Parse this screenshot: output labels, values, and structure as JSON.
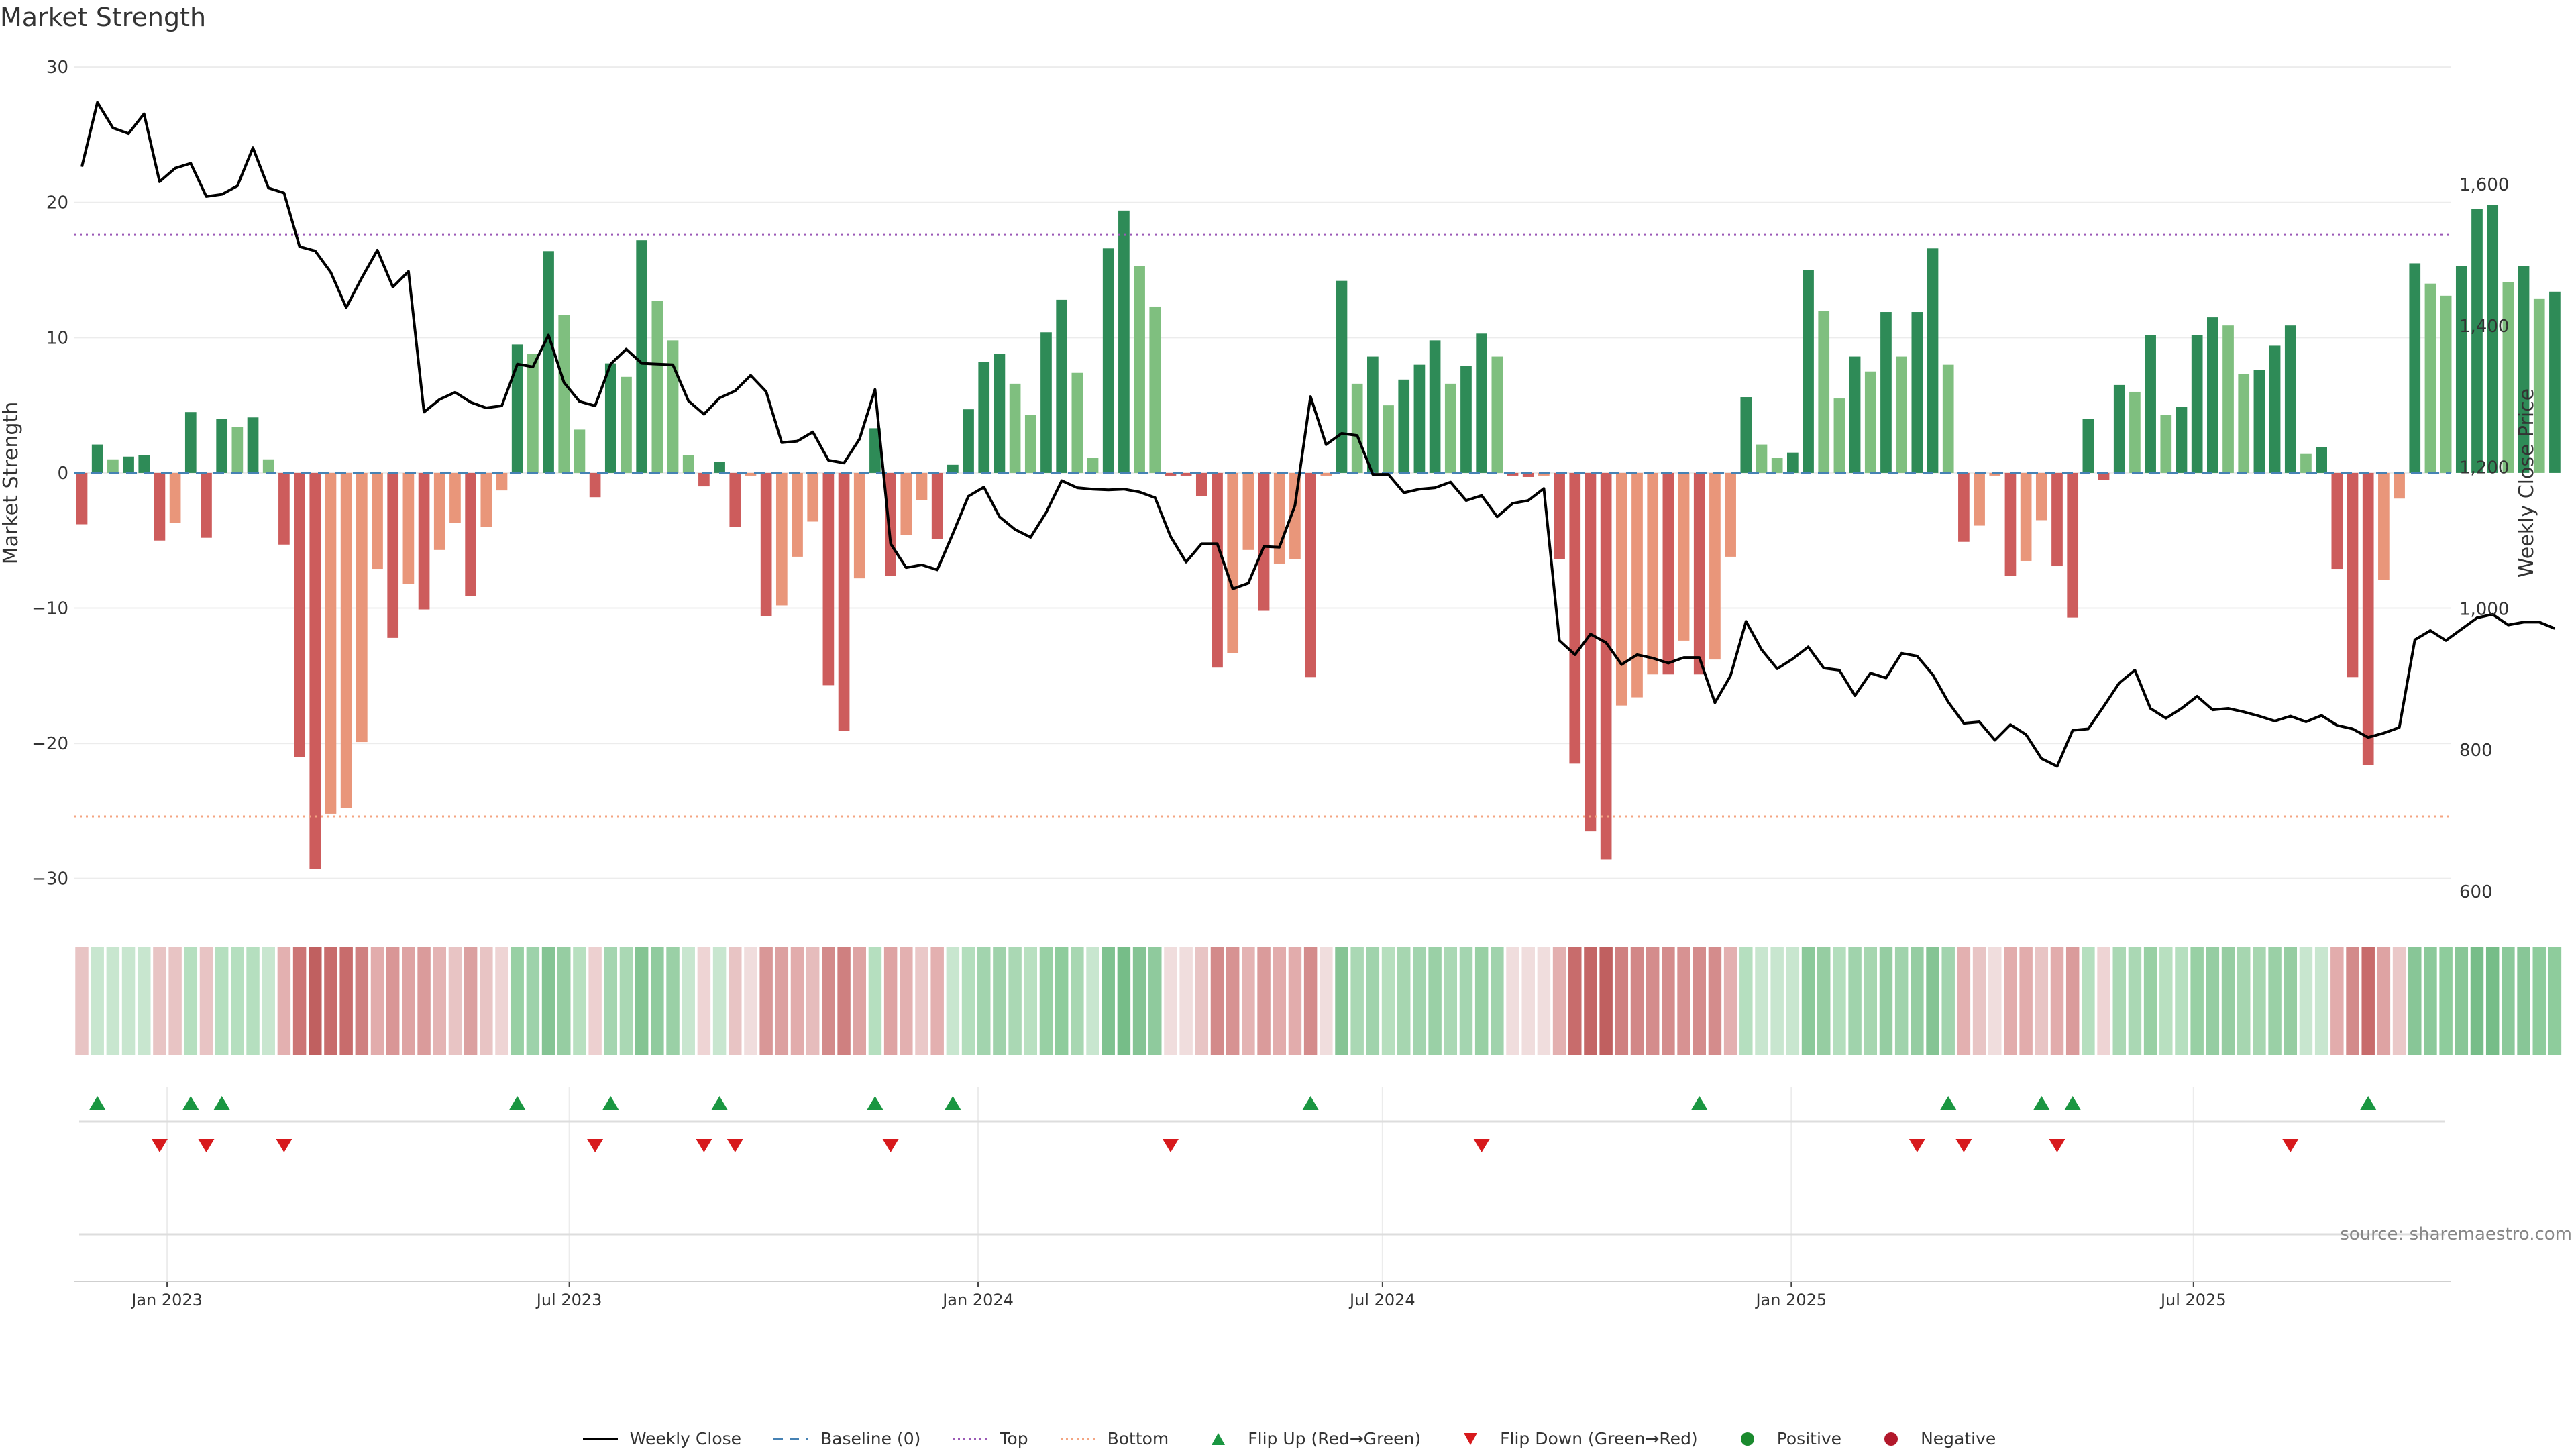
{
  "chart_data": {
    "type": "bar",
    "title": "Market Strength",
    "ylabel_left": "Market Strength",
    "ylabel_right": "Weekly Close Price",
    "ylim_left": [
      -32,
      31
    ],
    "ylim_right": [
      580,
      1785
    ],
    "yticks_left": [
      30,
      20,
      10,
      0,
      -10,
      -20,
      -30
    ],
    "yticks_left_labels": [
      "30",
      "20",
      "10",
      "0",
      "−10",
      "−20",
      "−30"
    ],
    "yticks_right": [
      1600,
      1400,
      1200,
      1000,
      800,
      600
    ],
    "yticks_right_labels": [
      "1,600",
      "1,400",
      "1,200",
      "1,000",
      "800",
      "600"
    ],
    "x_start": "2022-11-20",
    "x_end": "2025-10-25",
    "xtick_labels": [
      {
        "date": "2023-01-01",
        "label": "Jan 2023"
      },
      {
        "date": "2023-07-01",
        "label": "Jul 2023"
      },
      {
        "date": "2024-01-01",
        "label": "Jan 2024"
      },
      {
        "date": "2024-07-01",
        "label": "Jul 2024"
      },
      {
        "date": "2025-01-01",
        "label": "Jan 2025"
      },
      {
        "date": "2025-07-01",
        "label": "Jul 2025"
      }
    ],
    "top_line": 17.6,
    "bottom_line": -25.4,
    "series": [
      {
        "name": "Market Strength",
        "start": "2022-11-20",
        "step_days": 7,
        "values": [
          -3.8,
          2.1,
          1.0,
          1.2,
          1.3,
          -5.0,
          -3.7,
          4.5,
          -4.8,
          4.0,
          3.4,
          4.1,
          1.0,
          -5.3,
          -21.0,
          -29.3,
          -25.2,
          -24.8,
          -19.9,
          -7.1,
          -12.2,
          -8.2,
          -10.1,
          -5.7,
          -3.7,
          -9.1,
          -4.0,
          -1.3,
          9.5,
          8.8,
          16.4,
          11.7,
          3.2,
          -1.8,
          8.1,
          7.1,
          17.2,
          12.7,
          9.8,
          1.3,
          -1.0,
          0.8,
          -4.0,
          -0.2,
          -10.6,
          -9.8,
          -6.2,
          -3.6,
          -15.7,
          -19.1,
          -7.8,
          3.3,
          -7.6,
          -4.6,
          -2.0,
          -4.9,
          0.6,
          4.7,
          8.2,
          8.8,
          6.6,
          4.3,
          10.4,
          12.8,
          7.4,
          1.1,
          16.6,
          19.4,
          15.3,
          12.3,
          -0.2,
          -0.2,
          -1.7,
          -14.4,
          -13.3,
          -5.7,
          -10.2,
          -6.7,
          -6.4,
          -15.1,
          -0.2,
          14.2,
          6.6,
          8.6,
          5.0,
          6.9,
          8.0,
          9.8,
          6.6,
          7.9,
          10.3,
          8.6,
          -0.2,
          -0.3,
          -0.2,
          -6.4,
          -21.5,
          -26.5,
          -28.6,
          -17.2,
          -16.6,
          -14.9,
          -14.9,
          -12.4,
          -14.9,
          -13.8,
          -6.2,
          5.6,
          2.1,
          1.1,
          1.5,
          15.0,
          12.0,
          5.5,
          8.6,
          7.5,
          11.9,
          8.6,
          11.9,
          16.6,
          8.0,
          -5.1,
          -3.9,
          -0.2,
          -7.6,
          -6.5,
          -3.5,
          -6.9,
          -10.7,
          4.0,
          -0.5,
          6.5,
          6.0,
          10.2,
          4.3,
          4.9,
          10.2,
          11.5,
          10.9,
          7.3,
          7.6,
          9.4,
          10.9,
          1.4,
          1.9,
          -7.1,
          -15.1,
          -21.6,
          -7.9,
          -1.9,
          15.5,
          14.0,
          13.1,
          15.3,
          19.5,
          19.8,
          14.1,
          15.3,
          12.9,
          13.4
        ]
      },
      {
        "name": "Weekly Close",
        "start": "2022-11-20",
        "step_days": 7,
        "values": [
          1625,
          1716,
          1680,
          1672,
          1700,
          1604,
          1623,
          1630,
          1583,
          1586,
          1598,
          1652,
          1595,
          1588,
          1512,
          1506,
          1476,
          1426,
          1468,
          1507,
          1455,
          1477,
          1278,
          1296,
          1306,
          1292,
          1284,
          1287,
          1346,
          1342,
          1387,
          1320,
          1293,
          1287,
          1346,
          1367,
          1347,
          1346,
          1345,
          1294,
          1275,
          1298,
          1308,
          1330,
          1307,
          1235,
          1237,
          1250,
          1210,
          1206,
          1240,
          1310,
          1092,
          1058,
          1062,
          1055,
          1106,
          1159,
          1172,
          1130,
          1112,
          1101,
          1136,
          1181,
          1171,
          1169,
          1168,
          1169,
          1165,
          1157,
          1102,
          1066,
          1092,
          1092,
          1028,
          1036,
          1088,
          1087,
          1146,
          1300,
          1232,
          1248,
          1245,
          1190,
          1190,
          1164,
          1169,
          1171,
          1179,
          1153,
          1160,
          1130,
          1149,
          1153,
          1170,
          955,
          935,
          964,
          952,
          921,
          935,
          930,
          923,
          931,
          931,
          867,
          905,
          982,
          942,
          915,
          929,
          946,
          916,
          913,
          877,
          909,
          902,
          937,
          933,
          907,
          868,
          838,
          840,
          814,
          836,
          822,
          788,
          777,
          828,
          830,
          862,
          895,
          913,
          859,
          845,
          859,
          876,
          857,
          859,
          854,
          848,
          841,
          848,
          840,
          849,
          835,
          830,
          818,
          824,
          832,
          956,
          969,
          955,
          971,
          987,
          992,
          977,
          981,
          981,
          972
        ]
      }
    ],
    "heat_colors": [
      "#e8c4c4",
      "#c8e6cf",
      "#c8e6cf",
      "#c8e6cf",
      "#c8e6cf",
      "#e8c4c4",
      "#e8c4c4",
      "#b5dfbf",
      "#e8c4c4",
      "#b5dfbf",
      "#b5dfbf",
      "#b5dfbf",
      "#c8e6cf",
      "#e3b0b0",
      "#cc7575",
      "#c06060",
      "#c86c6c",
      "#c86c6c",
      "#cf8080",
      "#e2acac",
      "#d99696",
      "#dea3a3",
      "#da9b9b",
      "#e4b3b3",
      "#e8c4c4",
      "#dba0a0",
      "#e8c4c4",
      "#eed4d4",
      "#98d0a4",
      "#9dd2aa",
      "#85c494",
      "#96cda2",
      "#b8e0c0",
      "#edd0d0",
      "#a4d5b0",
      "#aad8b4",
      "#84c493",
      "#90cb9e",
      "#9ad0a6",
      "#c8e6cf",
      "#eed4d4",
      "#c8e6cf",
      "#e8c4c4",
      "#f0dddd",
      "#d99797",
      "#dca0a0",
      "#e2acac",
      "#e6bcbc",
      "#d38a8a",
      "#cf8080",
      "#dea3a3",
      "#b5dfbf",
      "#dea3a3",
      "#e3b0b0",
      "#eac8c8",
      "#e3b0b0",
      "#c8e6cf",
      "#b3debd",
      "#a2d4ae",
      "#9fd2ab",
      "#aad8b4",
      "#b8e0c0",
      "#98d0a4",
      "#8ecc9c",
      "#a8d7b2",
      "#c8e6cf",
      "#7fc290",
      "#76bd88",
      "#85c494",
      "#8fca9d",
      "#f0dddd",
      "#f0dddd",
      "#e8c4c4",
      "#d38a8a",
      "#d79292",
      "#e4b3b3",
      "#da9b9b",
      "#e2acac",
      "#e2acac",
      "#d48c8c",
      "#f0dddd",
      "#86c495",
      "#aad8b4",
      "#a0d3ac",
      "#b6dfbe",
      "#a6d6b0",
      "#a2d4ae",
      "#9ad0a6",
      "#aad8b4",
      "#a4d5b0",
      "#98d0a4",
      "#a0d3ac",
      "#f0dddd",
      "#f0dddd",
      "#f0dddd",
      "#e3b0b0",
      "#c86c6c",
      "#c46666",
      "#c06060",
      "#cf8080",
      "#d28787",
      "#d48c8c",
      "#d48c8c",
      "#d79292",
      "#d48c8c",
      "#d48c8c",
      "#e3b0b0",
      "#b5dfbf",
      "#c8e6cf",
      "#c8e6cf",
      "#c8e6cf",
      "#8bc99a",
      "#96cda2",
      "#b3debd",
      "#a0d3ac",
      "#a6d6b0",
      "#95cda2",
      "#a0d3ac",
      "#95cda2",
      "#85c494",
      "#a2d4ae",
      "#e3b0b0",
      "#e8c4c4",
      "#f0dddd",
      "#e2acac",
      "#e2acac",
      "#e8c4c4",
      "#e2acac",
      "#da9b9b",
      "#b5dfbf",
      "#eed4d4",
      "#aad8b4",
      "#aad8b4",
      "#98d0a4",
      "#b8e0c0",
      "#b5dfbf",
      "#98d0a4",
      "#95cda2",
      "#96cda2",
      "#a6d6b0",
      "#a6d6b0",
      "#9ad0a6",
      "#96cda2",
      "#c8e6cf",
      "#c8e6cf",
      "#e2acac",
      "#d38a8a",
      "#c86c6c",
      "#dea3a3",
      "#eac8c8",
      "#88c697",
      "#8bc99a",
      "#8ecc9c",
      "#88c697",
      "#77bd89",
      "#76bd88",
      "#8bc99a",
      "#88c697",
      "#8ecc9c",
      "#8ecc9c"
    ],
    "flip_up_indices": [
      1,
      7,
      9,
      28,
      34,
      41,
      51,
      56,
      79,
      104,
      120,
      126,
      128,
      147
    ],
    "flip_down_indices": [
      5,
      8,
      13,
      33,
      40,
      42,
      52,
      70,
      90,
      118,
      121,
      127,
      142
    ],
    "legend": [
      "Weekly Close",
      "Baseline (0)",
      "Top",
      "Bottom",
      "Flip Up (Red→Green)",
      "Flip Down (Green→Red)",
      "Positive",
      "Negative"
    ],
    "source": "source: sharemaestro.com"
  },
  "colors": {
    "pos_dark": "#2e8b57",
    "pos_light": "#7fbf7f",
    "neg_dark": "#cd5c5c",
    "neg_light": "#e9967a",
    "close_line": "#000000",
    "baseline": "#4682b4",
    "top_line": "#9b59b6",
    "bottom_line": "#f4a582",
    "flip_up": "#1a9641",
    "flip_down": "#d7191c",
    "positive_dot": "#1a8a2e",
    "negative_dot": "#b2182b"
  }
}
